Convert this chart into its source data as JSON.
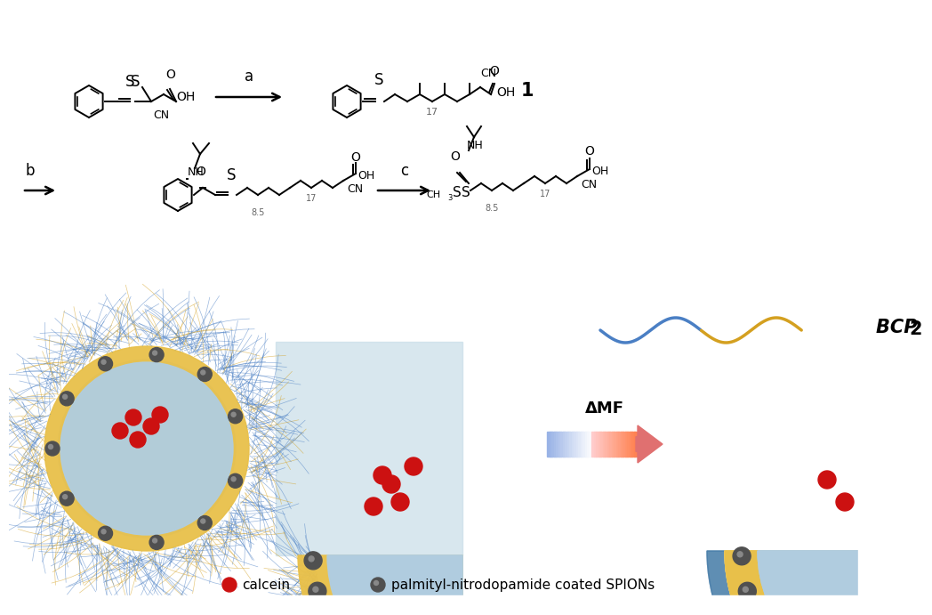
{
  "bg_color": "#ffffff",
  "blue_color": "#4a7faa",
  "light_blue_color": "#b0cde0",
  "light_blue2": "#c8dde8",
  "gold_color": "#e8c04a",
  "dark_gray": "#404040",
  "spion_color": "#505050",
  "spion_hi": "#888888",
  "red_dot_color": "#cc1111",
  "wave_blue": "#4a7fc4",
  "wave_gold": "#d4a020",
  "text_bcp2": "BCP ",
  "text_2": "2",
  "label_calcein": "calcein",
  "label_spions": "palmityl-nitrodopamide coated SPIONs",
  "label_amf": "ΔMF",
  "label_a": "a",
  "label_b": "b",
  "label_c": "c",
  "label_1": "1"
}
